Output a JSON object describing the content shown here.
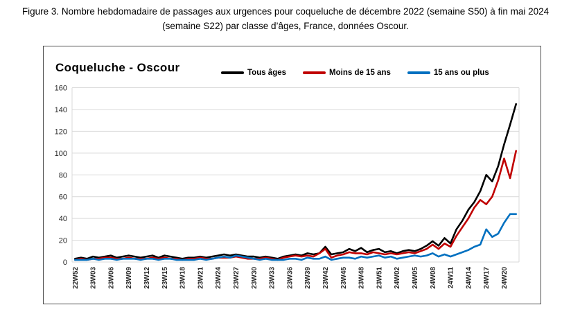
{
  "figure_caption": {
    "line1": "Figure 3. Nombre hebdomadaire de passages aux urgences pour coqueluche de décembre 2022 (semaine S50) à fin mai 2024",
    "line2": "(semaine S22) par classe d’âges, France, données Oscour."
  },
  "chart": {
    "title": "Coqueluche - Oscour",
    "legend": [
      {
        "label": "Tous âges",
        "color": "#000000"
      },
      {
        "label": "Moins de 15 ans",
        "color": "#c00000"
      },
      {
        "label": "15 ans ou plus",
        "color": "#0070c0"
      }
    ]
  },
  "chart_data": {
    "type": "line",
    "title": "Coqueluche - Oscour",
    "xlabel": "",
    "ylabel": "",
    "ylim": [
      0,
      160
    ],
    "y_ticks": [
      0,
      20,
      40,
      60,
      80,
      100,
      120,
      140,
      160
    ],
    "grid": "horizontal",
    "grid_color": "#d9d9d9",
    "legend_position": "top",
    "x_tick_interval": 3,
    "x_categories": [
      "22W52",
      "23W01",
      "23W02",
      "23W03",
      "23W04",
      "23W05",
      "23W06",
      "23W07",
      "23W08",
      "23W09",
      "23W10",
      "23W11",
      "23W12",
      "23W13",
      "23W14",
      "23W15",
      "23W16",
      "23W17",
      "23W18",
      "23W19",
      "23W20",
      "23W21",
      "23W22",
      "23W23",
      "23W24",
      "23W25",
      "23W26",
      "23W27",
      "23W28",
      "23W29",
      "23W30",
      "23W31",
      "23W32",
      "23W33",
      "23W34",
      "23W35",
      "23W36",
      "23W37",
      "23W38",
      "23W39",
      "23W40",
      "23W41",
      "23W42",
      "23W43",
      "23W44",
      "23W45",
      "23W46",
      "23W47",
      "23W48",
      "23W49",
      "23W50",
      "23W51",
      "23W52",
      "24W01",
      "24W02",
      "24W03",
      "24W04",
      "24W05",
      "24W06",
      "24W07",
      "24W08",
      "24W09",
      "24W10",
      "24W11",
      "24W12",
      "24W13",
      "24W14",
      "24W15",
      "24W16",
      "24W17",
      "24W18",
      "24W19",
      "24W20",
      "24W21",
      "24W22"
    ],
    "series": [
      {
        "name": "Tous âges",
        "color": "#000000",
        "values": [
          3,
          4,
          3,
          5,
          4,
          5,
          6,
          4,
          5,
          6,
          5,
          4,
          5,
          6,
          4,
          6,
          5,
          4,
          3,
          4,
          4,
          5,
          4,
          5,
          6,
          7,
          6,
          7,
          6,
          5,
          5,
          4,
          5,
          4,
          3,
          5,
          6,
          7,
          6,
          8,
          7,
          8,
          14,
          7,
          8,
          9,
          12,
          10,
          13,
          9,
          11,
          12,
          9,
          10,
          8,
          10,
          11,
          10,
          12,
          15,
          19,
          15,
          22,
          17,
          30,
          38,
          48,
          55,
          65,
          80,
          74,
          88,
          108,
          126,
          145
        ]
      },
      {
        "name": "Moins de 15 ans",
        "color": "#c00000",
        "values": [
          2,
          3,
          2,
          3,
          3,
          4,
          4,
          3,
          3,
          4,
          3,
          3,
          3,
          4,
          3,
          4,
          3,
          3,
          2,
          3,
          3,
          4,
          3,
          3,
          4,
          4,
          4,
          5,
          4,
          3,
          3,
          3,
          4,
          3,
          2,
          4,
          5,
          6,
          5,
          6,
          5,
          8,
          12,
          4,
          6,
          7,
          9,
          8,
          8,
          7,
          9,
          8,
          7,
          8,
          7,
          8,
          9,
          8,
          10,
          12,
          16,
          12,
          17,
          14,
          24,
          32,
          40,
          50,
          57,
          53,
          60,
          75,
          95,
          77,
          102
        ]
      },
      {
        "name": "15 ans ou plus",
        "color": "#0070c0",
        "values": [
          2,
          2,
          2,
          3,
          2,
          3,
          3,
          2,
          3,
          3,
          3,
          2,
          3,
          3,
          2,
          3,
          3,
          2,
          2,
          2,
          2,
          3,
          2,
          3,
          4,
          5,
          4,
          6,
          5,
          4,
          3,
          2,
          3,
          2,
          2,
          2,
          3,
          3,
          2,
          4,
          3,
          3,
          5,
          2,
          3,
          4,
          4,
          3,
          5,
          4,
          5,
          6,
          4,
          5,
          3,
          4,
          5,
          6,
          5,
          6,
          8,
          5,
          7,
          5,
          7,
          9,
          11,
          14,
          16,
          30,
          23,
          26,
          36,
          44,
          44
        ]
      }
    ]
  }
}
